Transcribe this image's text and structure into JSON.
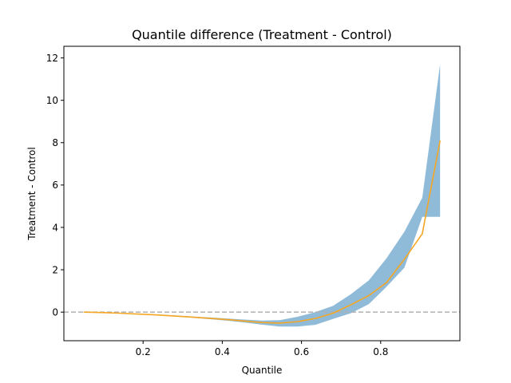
{
  "chart_data": {
    "type": "line",
    "title": "Quantile difference (Treatment - Control)",
    "xlabel": "Quantile",
    "ylabel": "Treatment - Control",
    "xlim": [
      0.0,
      1.0
    ],
    "ylim": [
      -1.35,
      12.55
    ],
    "xticks": [
      0.2,
      0.4,
      0.6,
      0.8
    ],
    "xtick_labels": [
      "0.2",
      "0.4",
      "0.6",
      "0.8"
    ],
    "yticks": [
      0,
      2,
      4,
      6,
      8,
      10,
      12
    ],
    "ytick_labels": [
      "0",
      "2",
      "4",
      "6",
      "8",
      "10",
      "12"
    ],
    "grid": false,
    "series": [
      {
        "kind": "line",
        "color": "#f5a623",
        "x": [
          0.05,
          0.095,
          0.14,
          0.185,
          0.23,
          0.275,
          0.32,
          0.365,
          0.41,
          0.455,
          0.5,
          0.545,
          0.59,
          0.635,
          0.68,
          0.725,
          0.77,
          0.815,
          0.86,
          0.905,
          0.95
        ],
        "y": [
          0.0,
          -0.02,
          -0.05,
          -0.09,
          -0.13,
          -0.18,
          -0.23,
          -0.29,
          -0.35,
          -0.42,
          -0.49,
          -0.52,
          -0.45,
          -0.3,
          -0.05,
          0.35,
          0.78,
          1.4,
          2.5,
          3.7,
          8.1
        ]
      },
      {
        "kind": "band",
        "color": "#1f77b4",
        "opacity": 0.5,
        "x": [
          0.05,
          0.095,
          0.14,
          0.185,
          0.23,
          0.275,
          0.32,
          0.365,
          0.41,
          0.455,
          0.5,
          0.545,
          0.59,
          0.635,
          0.68,
          0.725,
          0.77,
          0.815,
          0.86,
          0.905,
          0.95
        ],
        "lower": [
          0.0,
          -0.02,
          -0.06,
          -0.1,
          -0.15,
          -0.2,
          -0.26,
          -0.33,
          -0.4,
          -0.49,
          -0.59,
          -0.68,
          -0.68,
          -0.6,
          -0.32,
          -0.05,
          0.38,
          1.2,
          2.1,
          4.5,
          4.5
        ],
        "upper": [
          0.0,
          -0.01,
          -0.04,
          -0.07,
          -0.11,
          -0.15,
          -0.2,
          -0.25,
          -0.3,
          -0.35,
          -0.4,
          -0.38,
          -0.22,
          0.0,
          0.3,
          0.85,
          1.5,
          2.55,
          3.8,
          5.4,
          11.7
        ]
      }
    ],
    "reference_line": {
      "y": 0,
      "style": "dashed",
      "color": "#b0b0b0"
    }
  }
}
